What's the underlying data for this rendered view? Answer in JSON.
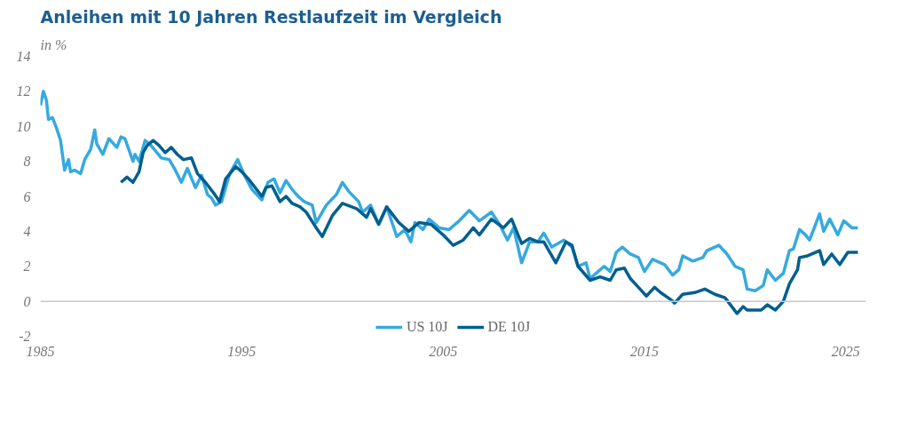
{
  "chart_data": {
    "type": "line",
    "title": "Anleihen mit 10 Jahren Restlaufzeit im Vergleich",
    "ylabel": "in %",
    "xlim": [
      1985,
      2026
    ],
    "xticks": [
      1985,
      1995,
      2005,
      2015,
      2025
    ],
    "ylim": [
      -2,
      14
    ],
    "yticks": [
      -2,
      0,
      2,
      4,
      6,
      8,
      10,
      12,
      14
    ],
    "grid": false,
    "legend": "bottom",
    "line_style": "solid",
    "ref_lines": [
      {
        "axis": "y",
        "value": 0,
        "label": null,
        "color": "#c8c8c8"
      }
    ],
    "series": [
      {
        "name": "US 10J",
        "color": "#35a9e0",
        "x": [
          1985.0,
          1985.15,
          1985.3,
          1985.4,
          1985.6,
          1985.8,
          1986.0,
          1986.2,
          1986.4,
          1986.5,
          1986.7,
          1987.0,
          1987.2,
          1987.5,
          1987.7,
          1987.8,
          1988.1,
          1988.4,
          1988.8,
          1989.0,
          1989.2,
          1989.6,
          1989.7,
          1989.9,
          1990.2,
          1990.5,
          1991.0,
          1991.4,
          1991.7,
          1992.0,
          1992.3,
          1992.7,
          1993.0,
          1993.3,
          1993.5,
          1993.7,
          1994.0,
          1994.4,
          1994.8,
          1995.1,
          1995.5,
          1996.0,
          1996.3,
          1996.6,
          1996.9,
          1997.2,
          1997.5,
          1997.8,
          1998.1,
          1998.5,
          1998.7,
          1998.9,
          1999.2,
          1999.7,
          2000.0,
          2000.3,
          2000.8,
          2001.0,
          2001.4,
          2001.8,
          2002.2,
          2002.7,
          2003.1,
          2003.4,
          2003.6,
          2004.0,
          2004.3,
          2004.8,
          2005.3,
          2005.8,
          2006.3,
          2006.8,
          2007.4,
          2007.8,
          2008.2,
          2008.5,
          2008.9,
          2009.3,
          2009.7,
          2010.0,
          2010.4,
          2011.0,
          2011.4,
          2011.7,
          2012.1,
          2012.3,
          2012.7,
          2013.0,
          2013.3,
          2013.6,
          2013.9,
          2014.3,
          2014.7,
          2015.0,
          2015.4,
          2016.0,
          2016.4,
          2016.7,
          2016.9,
          2017.4,
          2017.9,
          2018.1,
          2018.7,
          2019.1,
          2019.5,
          2019.9,
          2020.1,
          2020.5,
          2020.9,
          2021.1,
          2021.5,
          2021.9,
          2022.2,
          2022.4,
          2022.7,
          2023.0,
          2023.2,
          2023.7,
          2023.9,
          2024.2,
          2024.6,
          2024.9,
          2025.3,
          2025.6
        ],
        "values": [
          11.2,
          12.0,
          11.5,
          10.4,
          10.5,
          9.9,
          9.2,
          7.5,
          8.1,
          7.4,
          7.5,
          7.3,
          8.1,
          8.7,
          9.8,
          9.0,
          8.4,
          9.3,
          8.8,
          9.4,
          9.3,
          8.0,
          8.4,
          8.0,
          9.2,
          8.9,
          8.2,
          8.1,
          7.5,
          6.8,
          7.6,
          6.5,
          7.2,
          6.1,
          5.9,
          5.5,
          5.7,
          7.3,
          8.1,
          7.3,
          6.4,
          5.8,
          6.8,
          7.0,
          6.2,
          6.9,
          6.4,
          6.0,
          5.7,
          5.5,
          4.5,
          4.9,
          5.5,
          6.1,
          6.8,
          6.3,
          5.7,
          5.1,
          5.5,
          4.4,
          5.4,
          3.7,
          4.1,
          3.4,
          4.5,
          4.1,
          4.7,
          4.2,
          4.1,
          4.6,
          5.2,
          4.6,
          5.1,
          4.4,
          3.5,
          4.2,
          2.2,
          3.4,
          3.4,
          3.9,
          3.1,
          3.5,
          3.1,
          2.0,
          2.2,
          1.3,
          1.7,
          2.0,
          1.7,
          2.8,
          3.1,
          2.7,
          2.5,
          1.7,
          2.4,
          2.1,
          1.5,
          1.8,
          2.6,
          2.3,
          2.5,
          2.9,
          3.2,
          2.7,
          2.0,
          1.8,
          0.7,
          0.6,
          0.9,
          1.8,
          1.2,
          1.6,
          2.9,
          3.0,
          4.1,
          3.8,
          3.5,
          5.0,
          4.0,
          4.7,
          3.8,
          4.6,
          4.2,
          4.2
        ]
      },
      {
        "name": "DE 10J",
        "color": "#005f8f",
        "x": [
          1989.0,
          1989.3,
          1989.6,
          1989.9,
          1990.1,
          1990.3,
          1990.6,
          1990.9,
          1991.2,
          1991.5,
          1991.8,
          1992.1,
          1992.5,
          1992.8,
          1993.2,
          1993.6,
          1993.9,
          1994.2,
          1994.7,
          1995.0,
          1995.4,
          1996.0,
          1996.2,
          1996.5,
          1996.9,
          1997.2,
          1997.5,
          1997.9,
          1998.2,
          1998.7,
          1999.0,
          1999.5,
          2000.0,
          2000.7,
          2001.2,
          2001.4,
          2001.8,
          2002.2,
          2002.8,
          2003.3,
          2003.8,
          2004.4,
          2005.0,
          2005.5,
          2006.0,
          2006.5,
          2006.8,
          2007.4,
          2008.0,
          2008.4,
          2008.9,
          2009.3,
          2009.7,
          2010.0,
          2010.6,
          2011.1,
          2011.4,
          2011.7,
          2012.3,
          2012.8,
          2013.3,
          2013.6,
          2014.0,
          2014.3,
          2014.7,
          2015.1,
          2015.5,
          2015.8,
          2016.3,
          2016.5,
          2016.9,
          2017.5,
          2018.0,
          2018.5,
          2019.0,
          2019.6,
          2019.9,
          2020.1,
          2020.8,
          2021.1,
          2021.5,
          2021.9,
          2022.2,
          2022.6,
          2022.7,
          2023.1,
          2023.7,
          2023.9,
          2024.3,
          2024.7,
          2025.1,
          2025.6
        ],
        "values": [
          6.8,
          7.1,
          6.8,
          7.4,
          8.5,
          8.9,
          9.2,
          8.9,
          8.5,
          8.8,
          8.4,
          8.1,
          8.2,
          7.3,
          6.8,
          6.2,
          5.7,
          7.0,
          7.7,
          7.4,
          6.9,
          6.0,
          6.5,
          6.6,
          5.7,
          6.0,
          5.6,
          5.4,
          5.1,
          4.2,
          3.7,
          4.9,
          5.6,
          5.3,
          4.8,
          5.3,
          4.4,
          5.4,
          4.5,
          4.0,
          4.5,
          4.4,
          3.8,
          3.2,
          3.5,
          4.2,
          3.8,
          4.7,
          4.2,
          4.7,
          3.3,
          3.6,
          3.4,
          3.4,
          2.2,
          3.4,
          3.2,
          2.0,
          1.2,
          1.4,
          1.2,
          1.8,
          1.9,
          1.3,
          0.8,
          0.3,
          0.8,
          0.5,
          0.1,
          -0.1,
          0.4,
          0.5,
          0.7,
          0.4,
          0.2,
          -0.7,
          -0.3,
          -0.5,
          -0.5,
          -0.2,
          -0.5,
          0.0,
          1.0,
          1.8,
          2.5,
          2.6,
          2.9,
          2.1,
          2.7,
          2.1,
          2.8,
          2.8
        ]
      }
    ]
  }
}
